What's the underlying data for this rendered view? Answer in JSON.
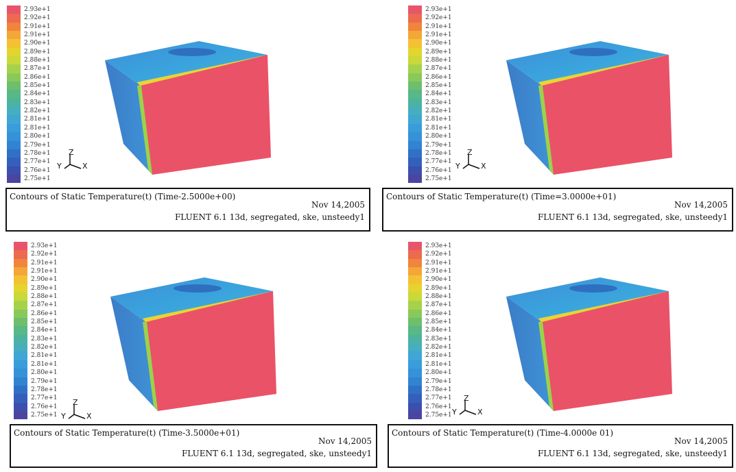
{
  "legend_labels": [
    "2.93e+1",
    "2.92e+1",
    "2.91e+1",
    "2.91e+1",
    "2.90e+1",
    "2.89e+1",
    "2.88e+1",
    "2.87e+1",
    "2.86e+1",
    "2.85e+1",
    "2.84e+1",
    "2.83e+1",
    "2.82e+1",
    "2.81e+1",
    "2.81e+1",
    "2.80e+1",
    "2.79e+1",
    "2.78e+1",
    "2.77e+1",
    "2.76e+1",
    "2.75e+1"
  ],
  "legend_colors": [
    "#e8556a",
    "#ec6a4f",
    "#f0853b",
    "#f4a638",
    "#f2c232",
    "#e4d42e",
    "#c9d93a",
    "#a6d24b",
    "#88c95a",
    "#6dbf6c",
    "#58b886",
    "#4cb3a1",
    "#47aec0",
    "#40a6d4",
    "#3a9cdb",
    "#3692d8",
    "#3283d2",
    "#3071c8",
    "#3460bb",
    "#3c4fae",
    "#4b45a0"
  ],
  "axes": {
    "z": "Z",
    "y": "Y",
    "x": "X"
  },
  "panels": [
    {
      "title": "Contours of Static Temperature(t) (Time-2.5000e+00)",
      "date": "Nov 14,2005",
      "solver": "FLUENT 6.1 13d, segregated, ske, unsteedy1"
    },
    {
      "title": "Contours of Static Temperature(t) (Time=3.0000e+01)",
      "date": "Nov 14,2005",
      "solver": "FLUENT 6.1 13d, segregated, ske, unsteedy1"
    },
    {
      "title": "Contours of Static Temperature(t) (Time-3.5000e+01)",
      "date": "Nov 14,2005",
      "solver": "FLUENT 6.1 13d, segregated, ske, unsteedy1"
    },
    {
      "title": "Contours of Static Temperature(t) (Time-4.0000e 01)",
      "date": "Nov 14,2005",
      "solver": "FLUENT 6.1 13d, segregated, ske, unsteedy1"
    }
  ]
}
